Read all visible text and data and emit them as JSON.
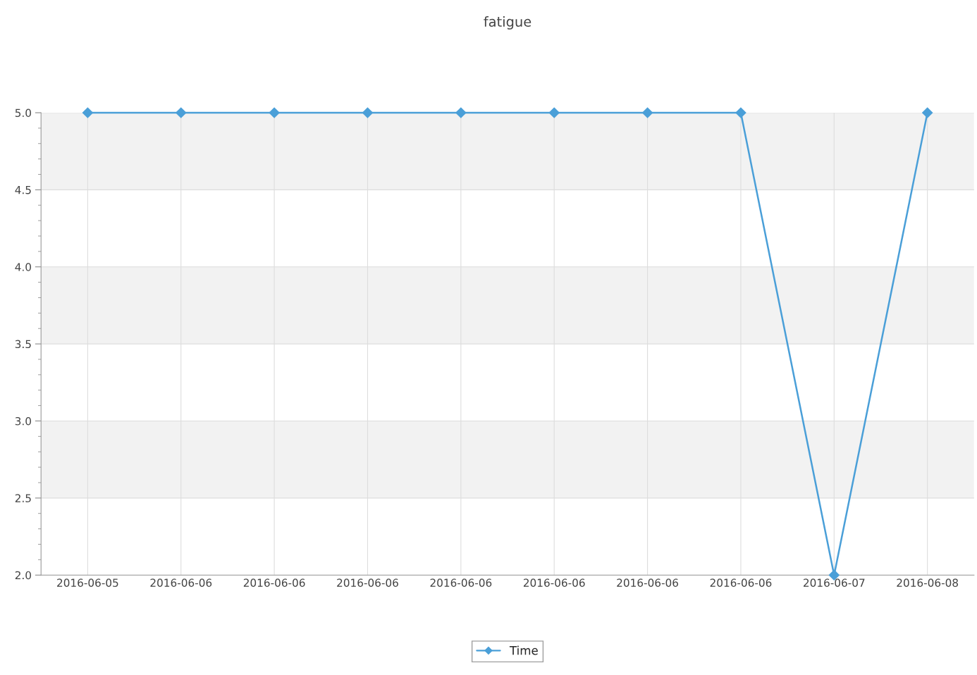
{
  "chart_data": {
    "type": "line",
    "title": "fatigue",
    "categories": [
      "2016-06-05",
      "2016-06-06",
      "2016-06-06",
      "2016-06-06",
      "2016-06-06",
      "2016-06-06",
      "2016-06-06",
      "2016-06-06",
      "2016-06-07",
      "2016-06-08"
    ],
    "series": [
      {
        "name": "Time",
        "color": "#4a9fd8",
        "values": [
          5,
          5,
          5,
          5,
          5,
          5,
          5,
          5,
          2,
          5
        ]
      }
    ],
    "ylim": [
      2,
      5
    ],
    "yticks": [
      {
        "value": 2,
        "label": "2.0"
      },
      {
        "value": 2.5,
        "label": "2.5"
      },
      {
        "value": 3,
        "label": "3.0"
      },
      {
        "value": 3.5,
        "label": "3.5"
      },
      {
        "value": 4,
        "label": "4.0"
      },
      {
        "value": 4.5,
        "label": "4.5"
      },
      {
        "value": 5,
        "label": "5.0"
      }
    ],
    "bands": [
      {
        "axis": "y",
        "from": 2.5,
        "to": 3,
        "color": "#f2f2f2"
      },
      {
        "axis": "y",
        "from": 3.5,
        "to": 4,
        "color": "#f2f2f2"
      },
      {
        "axis": "y",
        "from": 4.5,
        "to": 5,
        "color": "#f2f2f2"
      }
    ],
    "grid": true,
    "legend": "bottom",
    "marker": "diamond",
    "line_style": "solid"
  }
}
